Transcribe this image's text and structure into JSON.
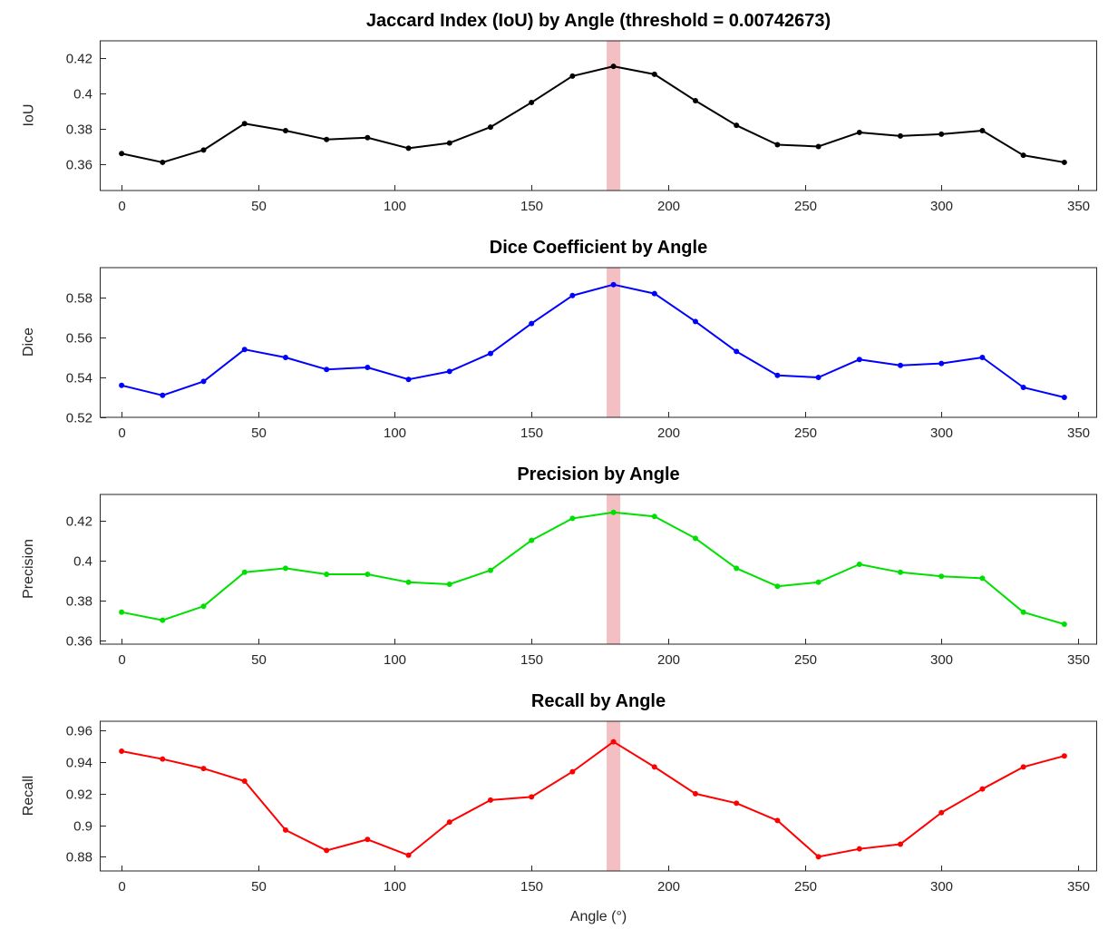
{
  "chart_data": [
    {
      "type": "line",
      "title": "Jaccard Index (IoU) by Angle (threshold = 0.00742673)",
      "ylabel": "IoU",
      "xlabel": "",
      "color": "#000000",
      "grid": false,
      "legend": "none",
      "x": [
        0,
        15,
        30,
        45,
        60,
        75,
        90,
        105,
        120,
        135,
        150,
        165,
        180,
        195,
        210,
        225,
        240,
        255,
        270,
        285,
        300,
        315,
        330,
        345
      ],
      "values": [
        0.366,
        0.361,
        0.368,
        0.383,
        0.379,
        0.374,
        0.375,
        0.369,
        0.372,
        0.381,
        0.395,
        0.41,
        0.4155,
        0.411,
        0.396,
        0.382,
        0.371,
        0.37,
        0.378,
        0.376,
        0.377,
        0.379,
        0.365,
        0.361
      ],
      "xlim": [
        -8,
        357
      ],
      "ylim": [
        0.345,
        0.43
      ],
      "xticks": [
        0,
        50,
        100,
        150,
        200,
        250,
        300,
        350
      ],
      "yticks": [
        0.36,
        0.38,
        0.4,
        0.42
      ],
      "highlight_band": {
        "x0": 177.5,
        "x1": 182.5,
        "color": "#dc4850",
        "opacity": 0.35
      }
    },
    {
      "type": "line",
      "title": "Dice Coefficient by Angle",
      "ylabel": "Dice",
      "xlabel": "",
      "color": "#0000ff",
      "grid": false,
      "legend": "none",
      "x": [
        0,
        15,
        30,
        45,
        60,
        75,
        90,
        105,
        120,
        135,
        150,
        165,
        180,
        195,
        210,
        225,
        240,
        255,
        270,
        285,
        300,
        315,
        330,
        345
      ],
      "values": [
        0.536,
        0.531,
        0.538,
        0.554,
        0.55,
        0.544,
        0.545,
        0.539,
        0.543,
        0.552,
        0.567,
        0.581,
        0.5865,
        0.582,
        0.568,
        0.553,
        0.541,
        0.54,
        0.549,
        0.546,
        0.547,
        0.55,
        0.535,
        0.53
      ],
      "xlim": [
        -8,
        357
      ],
      "ylim": [
        0.52,
        0.595
      ],
      "xticks": [
        0,
        50,
        100,
        150,
        200,
        250,
        300,
        350
      ],
      "yticks": [
        0.52,
        0.54,
        0.56,
        0.58
      ],
      "highlight_band": {
        "x0": 177.5,
        "x1": 182.5,
        "color": "#dc4850",
        "opacity": 0.35
      }
    },
    {
      "type": "line",
      "title": "Precision by Angle",
      "ylabel": "Precision",
      "xlabel": "",
      "color": "#00e000",
      "grid": false,
      "legend": "none",
      "x": [
        0,
        15,
        30,
        45,
        60,
        75,
        90,
        105,
        120,
        135,
        150,
        165,
        180,
        195,
        210,
        225,
        240,
        255,
        270,
        285,
        300,
        315,
        330,
        345
      ],
      "values": [
        0.374,
        0.37,
        0.377,
        0.394,
        0.396,
        0.393,
        0.393,
        0.389,
        0.388,
        0.395,
        0.41,
        0.421,
        0.424,
        0.422,
        0.411,
        0.396,
        0.387,
        0.389,
        0.398,
        0.394,
        0.392,
        0.391,
        0.374,
        0.368
      ],
      "xlim": [
        -8,
        357
      ],
      "ylim": [
        0.358,
        0.433
      ],
      "xticks": [
        0,
        50,
        100,
        150,
        200,
        250,
        300,
        350
      ],
      "yticks": [
        0.36,
        0.38,
        0.4,
        0.42
      ],
      "highlight_band": {
        "x0": 177.5,
        "x1": 182.5,
        "color": "#dc4850",
        "opacity": 0.35
      }
    },
    {
      "type": "line",
      "title": "Recall by Angle",
      "ylabel": "Recall",
      "xlabel": "Angle (°)",
      "color": "#ff0000",
      "grid": false,
      "legend": "none",
      "x": [
        0,
        15,
        30,
        45,
        60,
        75,
        90,
        105,
        120,
        135,
        150,
        165,
        180,
        195,
        210,
        225,
        240,
        255,
        270,
        285,
        300,
        315,
        330,
        345
      ],
      "values": [
        0.947,
        0.942,
        0.936,
        0.928,
        0.897,
        0.884,
        0.891,
        0.881,
        0.902,
        0.916,
        0.918,
        0.934,
        0.953,
        0.937,
        0.92,
        0.914,
        0.903,
        0.88,
        0.885,
        0.888,
        0.908,
        0.923,
        0.937,
        0.944
      ],
      "xlim": [
        -8,
        357
      ],
      "ylim": [
        0.871,
        0.966
      ],
      "xticks": [
        0,
        50,
        100,
        150,
        200,
        250,
        300,
        350
      ],
      "yticks": [
        0.88,
        0.9,
        0.92,
        0.94,
        0.96
      ],
      "highlight_band": {
        "x0": 177.5,
        "x1": 182.5,
        "color": "#dc4850",
        "opacity": 0.35
      }
    }
  ]
}
